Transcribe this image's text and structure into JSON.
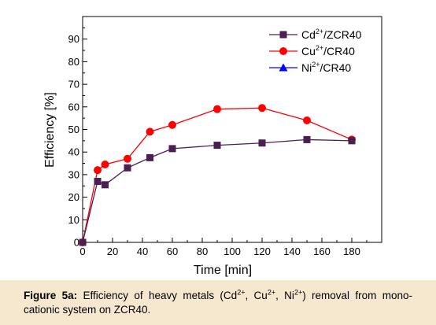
{
  "chart_data": {
    "type": "line",
    "xlabel": "Time [min]",
    "ylabel": "Efficiency [%]",
    "xlim": [
      0,
      200
    ],
    "ylim": [
      0,
      100
    ],
    "xticks": [
      0,
      20,
      40,
      60,
      80,
      100,
      120,
      140,
      160,
      180
    ],
    "yticks": [
      0,
      10,
      20,
      30,
      40,
      50,
      60,
      70,
      80,
      90
    ],
    "grid": false,
    "legend_position": "top-right",
    "series": [
      {
        "name": "Cd2+/ZCR40",
        "name_parts": [
          "Cd",
          "2+",
          "/ZCR40"
        ],
        "color": "#4b1f52",
        "marker": "square",
        "x": [
          0,
          10,
          15,
          30,
          45,
          60,
          90,
          120,
          150,
          180
        ],
        "y": [
          0,
          27,
          25.5,
          33,
          37.5,
          41.5,
          43,
          44,
          45.5,
          45
        ]
      },
      {
        "name": "Cu2+/CR40",
        "name_parts": [
          "Cu",
          "2+",
          "/CR40"
        ],
        "color": "#ff0000",
        "marker": "circle",
        "x": [
          0,
          10,
          15,
          30,
          45,
          60,
          90,
          120,
          150,
          180
        ],
        "y": [
          0,
          32,
          34.5,
          37,
          49,
          52,
          59,
          59.5,
          54,
          45.5
        ]
      },
      {
        "name": "Ni2+/CR40",
        "name_parts": [
          "Ni",
          "2+",
          "/CR40"
        ],
        "color": "#0000ff",
        "marker": "triangle",
        "x": [],
        "y": []
      }
    ]
  },
  "caption": {
    "label": "Figure 5a:",
    "text_a": " Efficiency of heavy metals (Cd",
    "sup1": "2+",
    "text_b": ", Cu",
    "sup2": "2+",
    "text_c": ", Ni",
    "sup3": "2+",
    "text_d": ") removal from mono-cationic system on ZCR40."
  }
}
